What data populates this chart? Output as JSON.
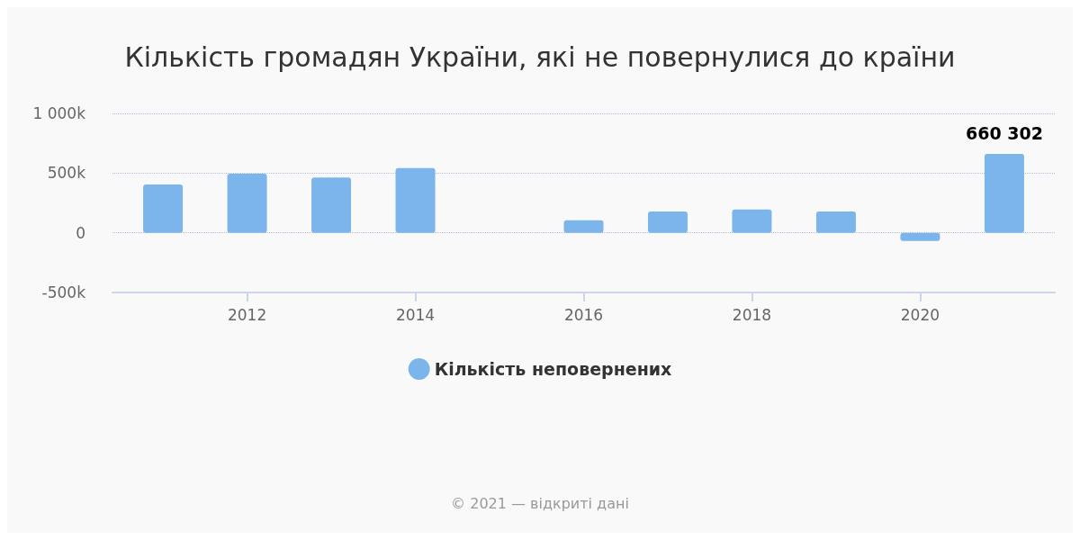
{
  "chart_data": {
    "type": "bar",
    "title": "Кількість громадян України, які не повернулися до країни",
    "x": [
      2011,
      2012,
      2013,
      2014,
      2015,
      2016,
      2017,
      2018,
      2019,
      2020,
      2021
    ],
    "series": [
      {
        "name": "Кількість неповернених",
        "color": "#7cb5ec",
        "values": [
          405000,
          495000,
          463000,
          542000,
          null,
          105000,
          179000,
          195000,
          179000,
          -68000,
          660302
        ],
        "value_labels": [
          null,
          null,
          null,
          null,
          null,
          null,
          null,
          null,
          null,
          null,
          "660 302"
        ]
      }
    ],
    "xlim": [
      2010.4,
      2021.6
    ],
    "xticks": [
      2012,
      2014,
      2016,
      2018,
      2020
    ],
    "ylim": [
      -500000,
      1000000
    ],
    "yticks": [
      {
        "value": -500000,
        "label": "-500k"
      },
      {
        "value": 0,
        "label": "0"
      },
      {
        "value": 500000,
        "label": "500k"
      },
      {
        "value": 1000000,
        "label": "1 000k"
      }
    ],
    "grid": "y",
    "legend": "bottom",
    "annotations": [
      "© 2021 — відкриті дані"
    ]
  }
}
